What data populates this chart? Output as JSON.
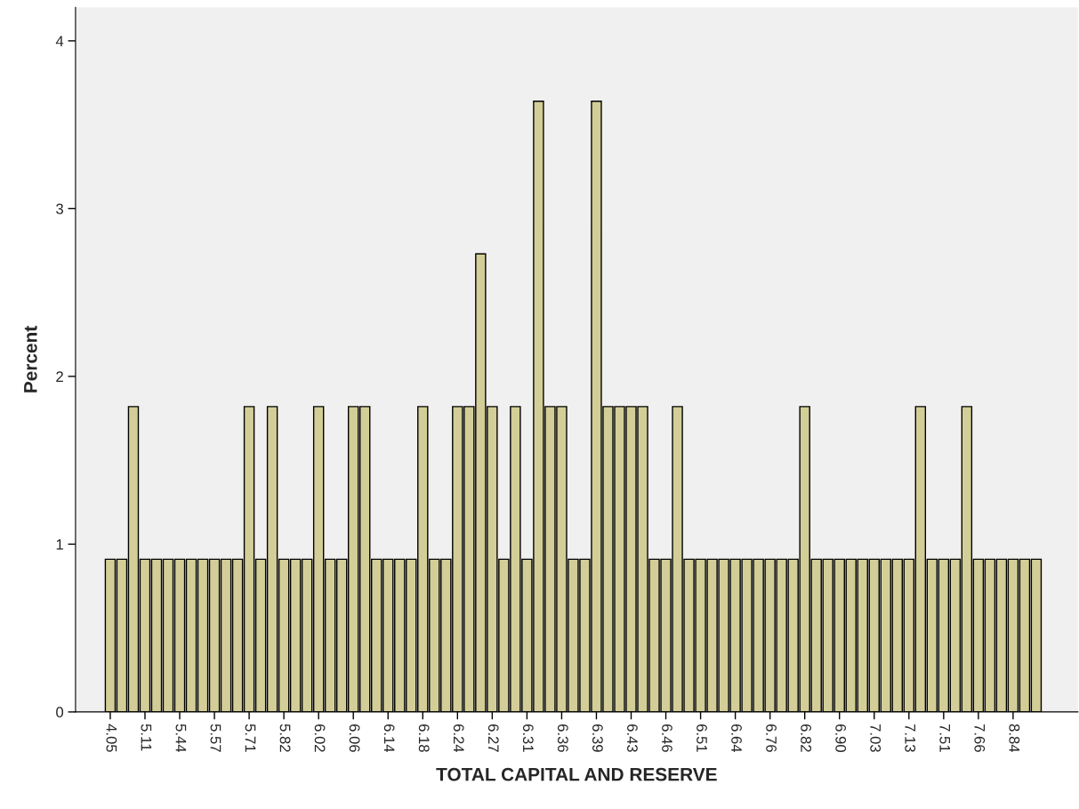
{
  "chart_data": {
    "type": "bar",
    "xlabel": "TOTAL CAPITAL AND RESERVE",
    "ylabel": "Percent",
    "categories": [
      "4.05",
      null,
      null,
      "5.11",
      null,
      null,
      "5.44",
      null,
      null,
      "5.57",
      null,
      null,
      "5.71",
      null,
      null,
      "5.82",
      null,
      null,
      "6.02",
      null,
      null,
      "6.06",
      null,
      null,
      "6.14",
      null,
      null,
      "6.18",
      null,
      null,
      "6.24",
      null,
      null,
      "6.27",
      null,
      null,
      "6.31",
      null,
      null,
      "6.36",
      null,
      null,
      "6.39",
      null,
      null,
      "6.43",
      null,
      null,
      "6.46",
      null,
      null,
      "6.51",
      null,
      null,
      "6.64",
      null,
      null,
      "6.76",
      null,
      null,
      "6.82",
      null,
      null,
      "6.90",
      null,
      null,
      "7.03",
      null,
      null,
      "7.13",
      null,
      null,
      "7.51",
      null,
      null,
      "7.66",
      null,
      null,
      "8.84",
      null,
      null
    ],
    "values": [
      0.91,
      0.91,
      1.82,
      0.91,
      0.91,
      0.91,
      0.91,
      0.91,
      0.91,
      0.91,
      0.91,
      0.91,
      1.82,
      0.91,
      1.82,
      0.91,
      0.91,
      0.91,
      1.82,
      0.91,
      0.91,
      1.82,
      1.82,
      0.91,
      0.91,
      0.91,
      0.91,
      1.82,
      0.91,
      0.91,
      1.82,
      1.82,
      2.73,
      1.82,
      0.91,
      1.82,
      0.91,
      3.64,
      1.82,
      1.82,
      0.91,
      0.91,
      3.64,
      1.82,
      1.82,
      1.82,
      1.82,
      0.91,
      0.91,
      1.82,
      0.91,
      0.91,
      0.91,
      0.91,
      0.91,
      0.91,
      0.91,
      0.91,
      0.91,
      0.91,
      1.82,
      0.91,
      0.91,
      0.91,
      0.91,
      0.91,
      0.91,
      0.91,
      0.91,
      0.91,
      1.82,
      0.91,
      0.91,
      0.91,
      1.82,
      0.91,
      0.91,
      0.91,
      0.91,
      0.91,
      0.91
    ],
    "color": "#d3ce97",
    "ylim": [
      0,
      4.2
    ],
    "yticks": [
      0,
      1,
      2,
      3,
      4
    ],
    "grid": false,
    "legend": false
  }
}
